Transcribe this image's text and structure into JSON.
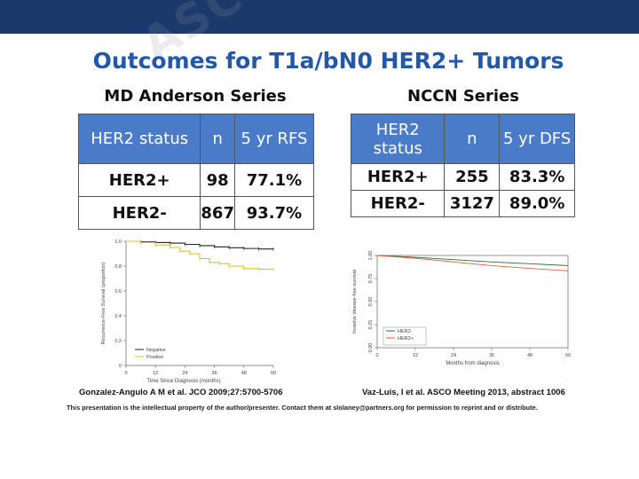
{
  "watermark": "ASCO",
  "slide": {
    "title": "Outcomes for T1a/bN0 HER2+ Tumors",
    "citation_left": "Gonzalez-Angulo A M et al. JCO 2009;27:5700-5706",
    "citation_right": "Vaz-Luis, I et al.  ASCO Meeting 2013, abstract 1006",
    "disclaimer": "This presentation is the intellectual property of the author/presenter.  Contact them at slolaney@partners.org for permission to reprint and or distribute."
  },
  "md_anderson": {
    "title": "MD Anderson Series",
    "headers": [
      "HER2 status",
      "n",
      "5 yr RFS"
    ],
    "rows": [
      [
        "HER2+",
        "98",
        "77.1%"
      ],
      [
        "HER2-",
        "867",
        "93.7%"
      ]
    ]
  },
  "nccn": {
    "title": "NCCN Series",
    "headers": [
      "HER2 status",
      "n",
      "5 yr DFS"
    ],
    "rows": [
      [
        "HER2+",
        "255",
        "83.3%"
      ],
      [
        "HER2-",
        "3127",
        "89.0%"
      ]
    ]
  },
  "chart_data": [
    {
      "type": "line",
      "title": "",
      "xlabel": "Time Since Diagnosis (months)",
      "ylabel": "Recurrence-Free Survival (proportion)",
      "xlim": [
        0,
        60
      ],
      "ylim": [
        0,
        1.0
      ],
      "x_ticks": [
        "0",
        "12",
        "24",
        "36",
        "48",
        "60"
      ],
      "y_ticks": [
        "0",
        "0.2",
        "0.4",
        "0.6",
        "0.8",
        "1.0"
      ],
      "legend": [
        "Negative",
        "Positive"
      ],
      "series": [
        {
          "name": "Negative",
          "color": "#222222",
          "x": [
            0,
            6,
            12,
            18,
            24,
            30,
            36,
            42,
            48,
            54,
            60
          ],
          "y": [
            1.0,
            0.995,
            0.99,
            0.985,
            0.975,
            0.965,
            0.955,
            0.948,
            0.942,
            0.938,
            0.937
          ]
        },
        {
          "name": "Positive",
          "color": "#e0c020",
          "x": [
            0,
            6,
            12,
            18,
            22,
            26,
            30,
            34,
            38,
            42,
            48,
            54,
            60
          ],
          "y": [
            1.0,
            0.99,
            0.97,
            0.95,
            0.92,
            0.9,
            0.86,
            0.83,
            0.82,
            0.8,
            0.78,
            0.775,
            0.771
          ]
        }
      ]
    },
    {
      "type": "line",
      "title": "",
      "xlabel": "Months from diagnosis",
      "ylabel": "Invasive disease-free survival",
      "xlim": [
        0,
        60
      ],
      "ylim": [
        0,
        1.0
      ],
      "x_ticks": [
        "0",
        "12",
        "24",
        "36",
        "48",
        "60"
      ],
      "y_ticks": [
        "0.00",
        "0.25",
        "0.50",
        "0.75",
        "1.00"
      ],
      "legend": [
        "HER2-",
        "HER2+"
      ],
      "series": [
        {
          "name": "HER2-",
          "color": "#2f6a3a",
          "x": [
            0,
            12,
            24,
            36,
            48,
            60
          ],
          "y": [
            1.0,
            0.98,
            0.955,
            0.93,
            0.91,
            0.89
          ]
        },
        {
          "name": "HER2+",
          "color": "#e0603a",
          "x": [
            0,
            12,
            24,
            36,
            48,
            60
          ],
          "y": [
            1.0,
            0.97,
            0.93,
            0.89,
            0.86,
            0.833
          ]
        }
      ]
    }
  ]
}
